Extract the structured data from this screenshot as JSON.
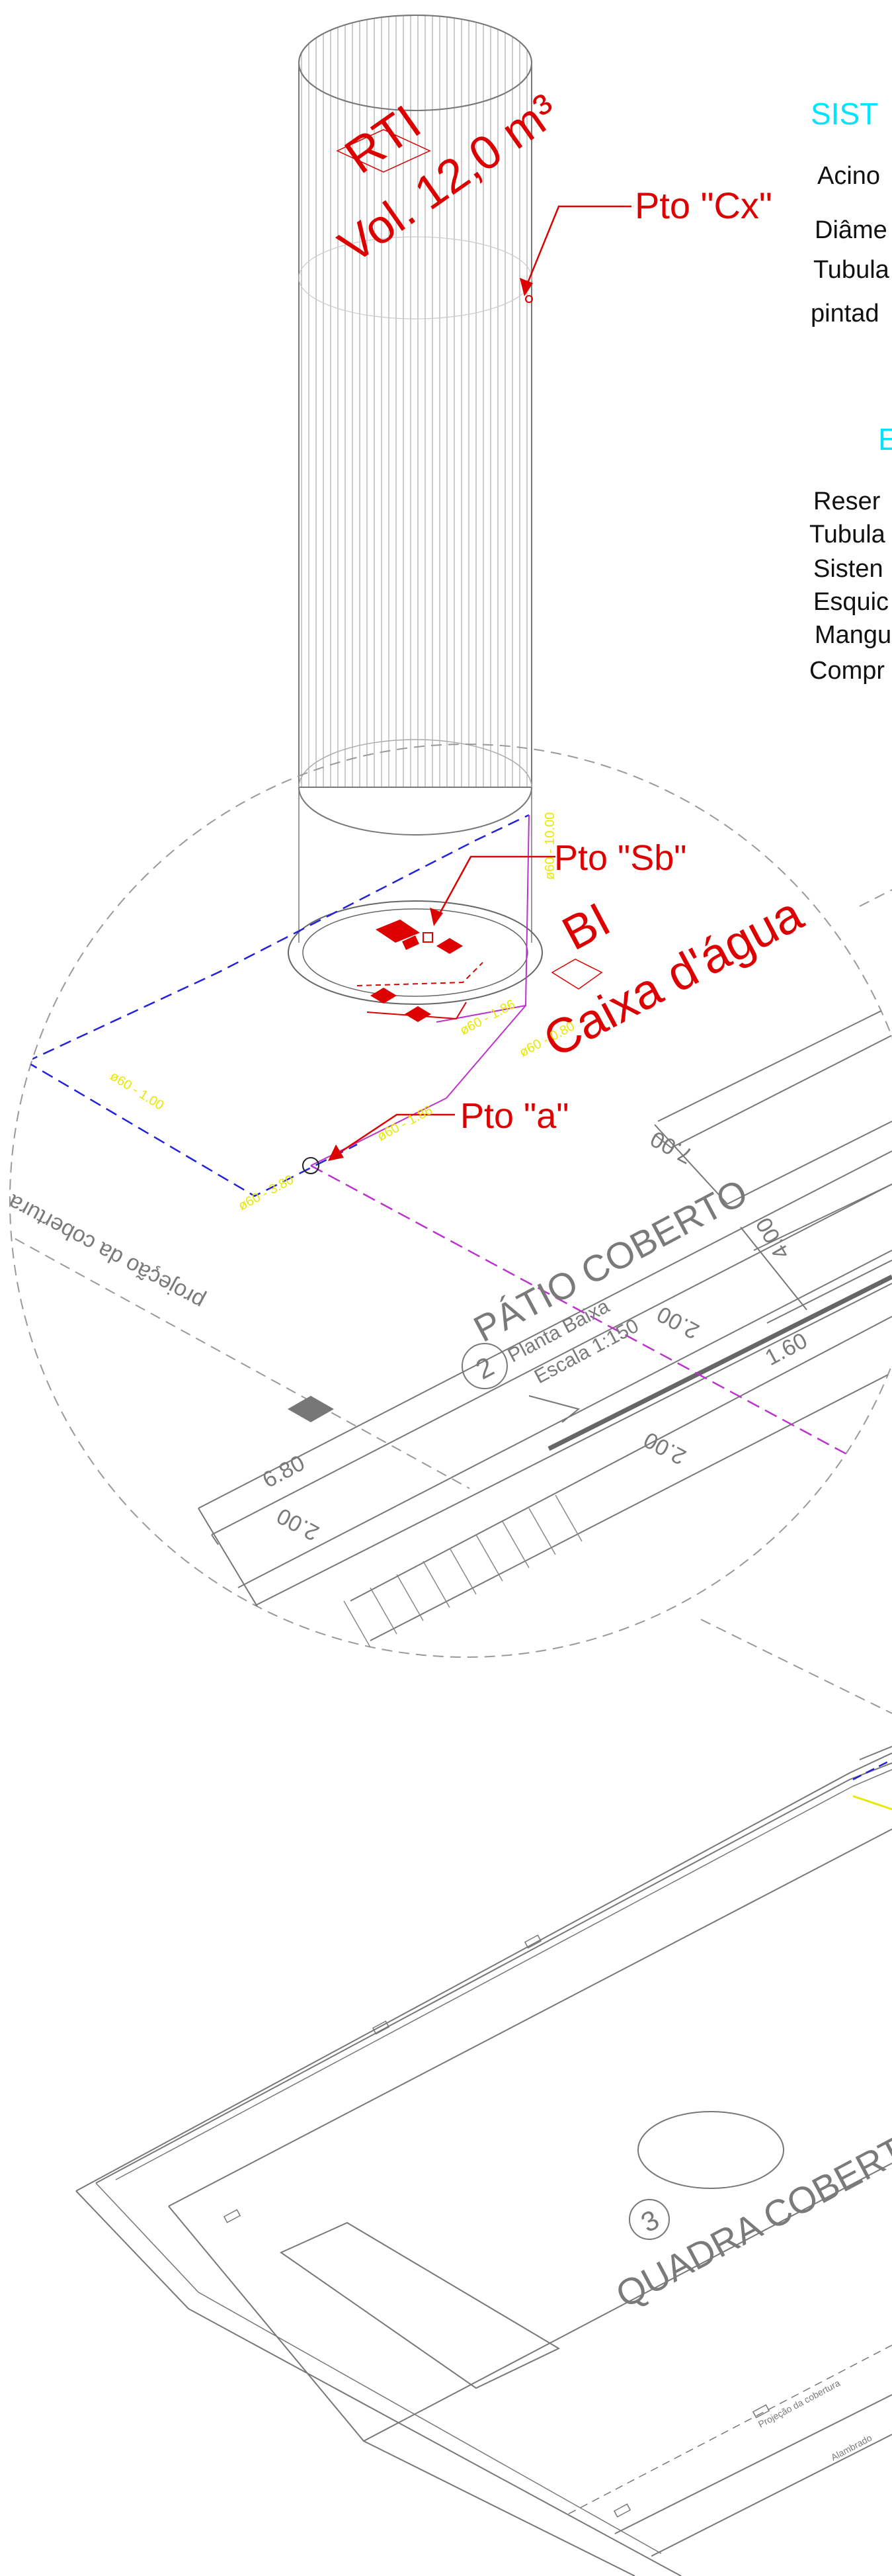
{
  "labels": {
    "rti": "RTI",
    "volume": "Vol. 12,0 m³",
    "pto_cx": "Pto \"Cx\"",
    "pto_sb": "Pto \"Sb\"",
    "pto_a": "Pto \"a\"",
    "bl": "BI",
    "caixa": "Caixa d'água",
    "patio": "PÁTIO COBERTO",
    "planta_baixa": "Planta Baixa",
    "escala": "Escala 1:150",
    "room_2": "2",
    "room_3": "3",
    "projecao": "projeção da cobertura",
    "quadra": "QUADRA COBERTA",
    "alambrado": "Alambrado",
    "projecao_small": "Projeção da cobertura"
  },
  "dimensions": {
    "d700a": "7.00",
    "d200a": "2.00",
    "d160": "1.60",
    "d400": "4.00",
    "d680": "6.80",
    "d200b": "2.00",
    "d_small": "2.00"
  },
  "pipe_tags": {
    "t1": "ø60 - 1.00",
    "t2": "ø60 - 3.80",
    "t3": "ø60 - 1.86",
    "t4": "ø60 - 1.86",
    "t5": "ø60 - 0.80",
    "t6": "ø60 - 10.00"
  },
  "panel": {
    "title": "SIST",
    "line1": "Acino",
    "line2": "Diâme",
    "line3": "Tubula",
    "line4": "pintad",
    "title2": "E",
    "list": [
      "Reser",
      "Tubula",
      "Sisten",
      "Esquic",
      "Mangu",
      "Compr"
    ]
  },
  "colors": {
    "annotation": "#dd0000",
    "pipe_dashed": "#2222dd",
    "pipe_magenta": "#bb33cc",
    "dimension": "#e8e800",
    "panel_title": "#00e5ff",
    "linework": "#7a7a7a"
  }
}
